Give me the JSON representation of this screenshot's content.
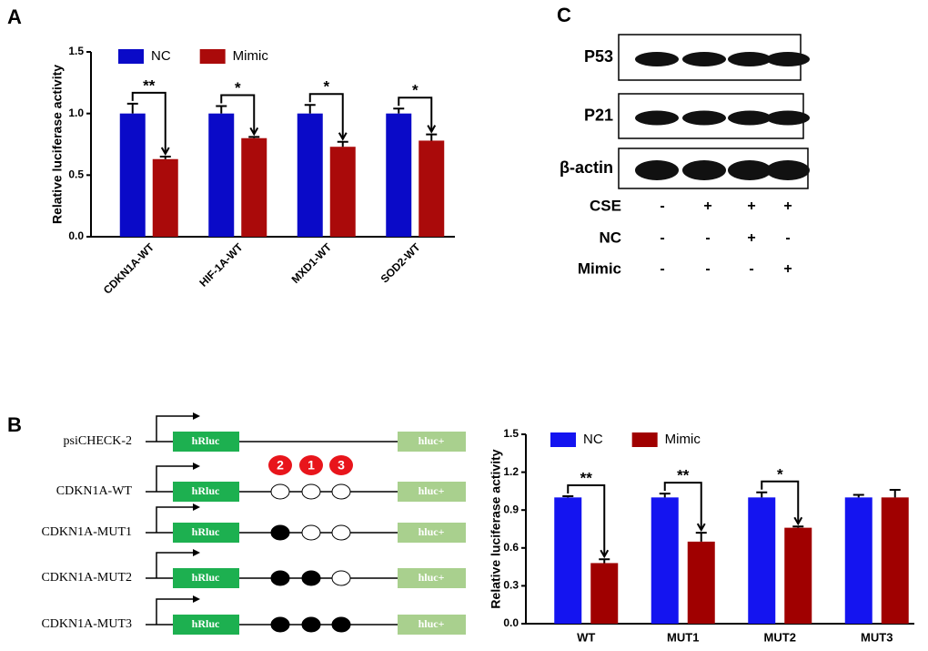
{
  "panels": {
    "a": "A",
    "b": "B",
    "c": "C"
  },
  "chart_data": [
    {
      "type": "bar",
      "ylabel": "Relative luciferase activity",
      "categories": [
        "CDKN1A-WT",
        "HIF-1A-WT",
        "MXD1-WT",
        "SOD2-WT"
      ],
      "series": [
        {
          "name": "NC",
          "color": "#0a0ac8",
          "values": [
            1.0,
            1.0,
            1.0,
            1.0
          ],
          "errors": [
            0.08,
            0.06,
            0.07,
            0.04
          ]
        },
        {
          "name": "Mimic",
          "color": "#aa0a0a",
          "values": [
            0.63,
            0.8,
            0.73,
            0.78
          ],
          "errors": [
            0.02,
            0.01,
            0.04,
            0.05
          ]
        }
      ],
      "significance": [
        "**",
        "*",
        "*",
        "*"
      ],
      "ylim": [
        0,
        1.5
      ],
      "yticks": [
        {
          "value": 0,
          "label": "0.0"
        },
        0.5,
        {
          "value": 1,
          "label": "1.0"
        },
        1.5
      ]
    },
    {
      "type": "bar",
      "ylabel": "Relative luciferase activity",
      "categories": [
        "WT",
        "MUT1",
        "MUT2",
        "MUT3"
      ],
      "series": [
        {
          "name": "NC",
          "color": "#1414f0",
          "values": [
            1.0,
            1.0,
            1.0,
            1.0
          ],
          "errors": [
            0.01,
            0.03,
            0.04,
            0.02
          ]
        },
        {
          "name": "Mimic",
          "color": "#a00000",
          "values": [
            0.48,
            0.65,
            0.76,
            1.0
          ],
          "errors": [
            0.03,
            0.07,
            0.01,
            0.06
          ]
        }
      ],
      "significance": [
        "**",
        "**",
        "*",
        null
      ],
      "ylim": [
        0,
        1.5
      ],
      "yticks": [
        {
          "value": 0,
          "label": "0.0"
        },
        0.3,
        0.6,
        0.9,
        1.2,
        1.5
      ]
    }
  ],
  "blot": {
    "bands": [
      "P53",
      "P21",
      "β-actin"
    ],
    "conditions": [
      {
        "name": "CSE",
        "marks": [
          "-",
          "+",
          "+",
          "+"
        ]
      },
      {
        "name": "NC",
        "marks": [
          "-",
          "-",
          "+",
          "-"
        ]
      },
      {
        "name": "Mimic",
        "marks": [
          "-",
          "-",
          "-",
          "+"
        ]
      }
    ]
  },
  "constructs": {
    "sites": [
      "2",
      "1",
      "3"
    ],
    "rows": [
      {
        "name": "psiCHECK-2",
        "reporter": "hRluc",
        "control": "hluc+"
      },
      {
        "name": "CDKN1A-WT",
        "reporter": "hRluc",
        "control": "hluc+",
        "mutated": [
          false,
          false,
          false
        ]
      },
      {
        "name": "CDKN1A-MUT1",
        "reporter": "hRluc",
        "control": "hluc+",
        "mutated": [
          true,
          false,
          false
        ]
      },
      {
        "name": "CDKN1A-MUT2",
        "reporter": "hRluc",
        "control": "hluc+",
        "mutated": [
          true,
          true,
          false
        ]
      },
      {
        "name": "CDKN1A-MUT3",
        "reporter": "hRluc",
        "control": "hluc+",
        "mutated": [
          true,
          true,
          true
        ]
      }
    ]
  }
}
